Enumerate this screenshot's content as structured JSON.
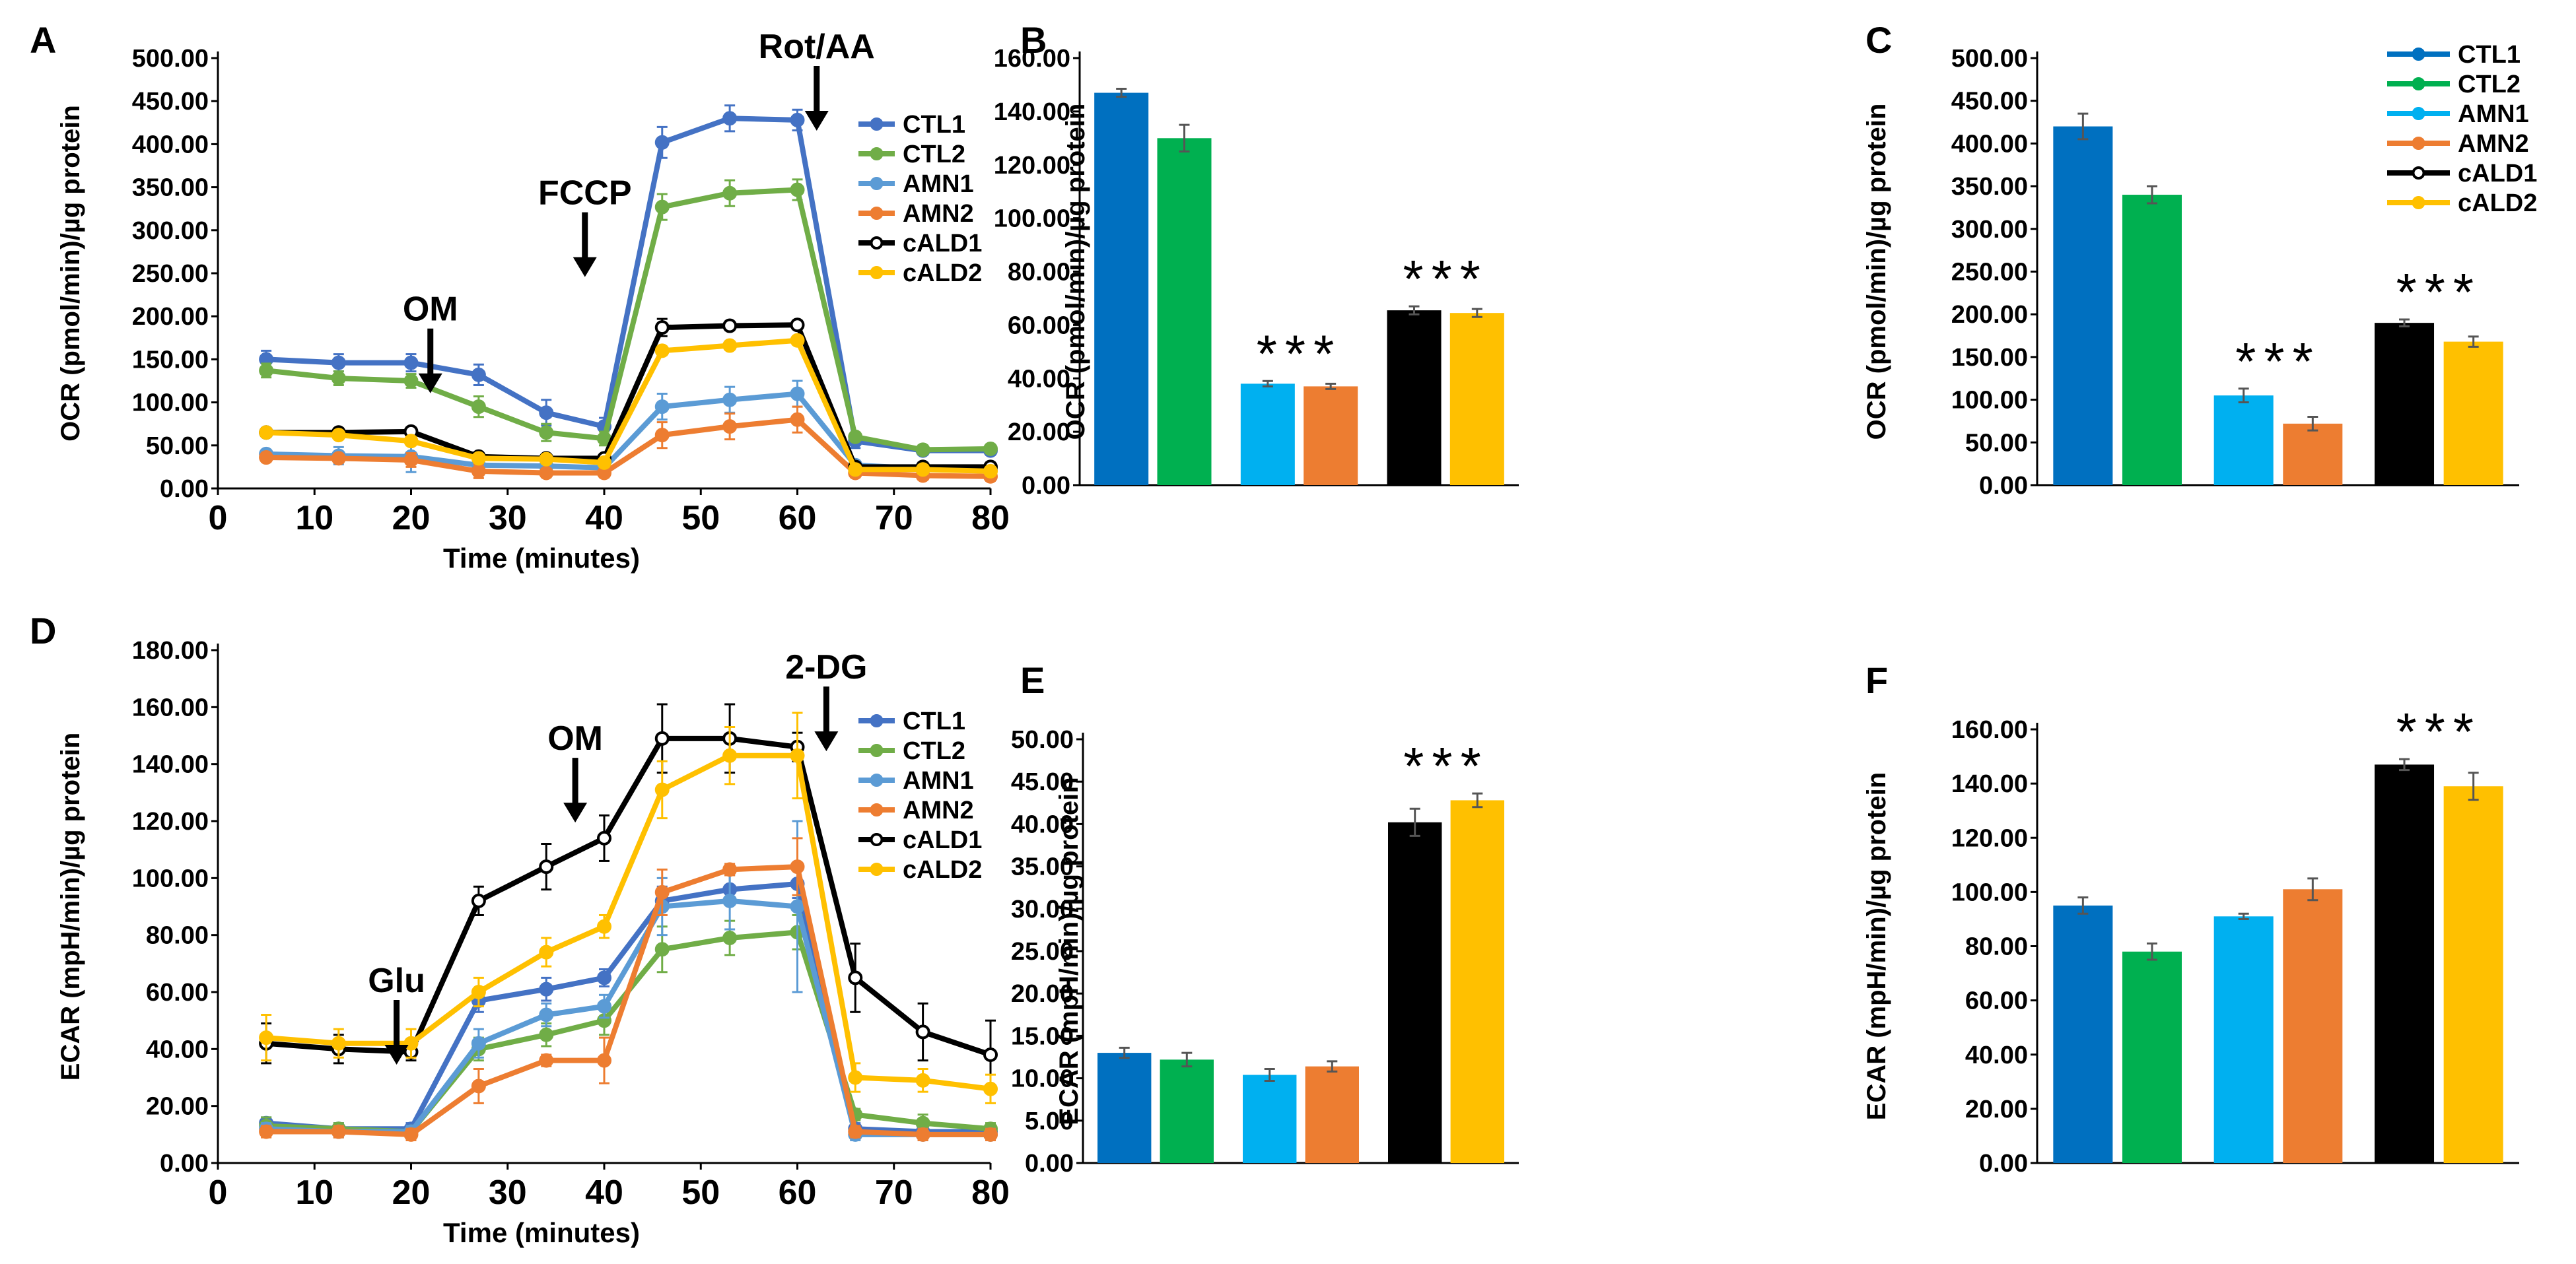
{
  "colors": {
    "CTL1": "#4472C4",
    "CTL2": "#70AD47",
    "AMN1": "#5B9BD5",
    "AMN2": "#ED7D31",
    "cALD1": "#000000",
    "cALD2": "#FFC000",
    "bar_CTL1": "#0070C0",
    "bar_CTL2": "#00B050",
    "bar_AMN1": "#00B0F0",
    "bar_AMN2": "#ED7D31",
    "bar_cALD1": "#000000",
    "bar_cALD2": "#FFC000"
  },
  "chart_data": [
    {
      "id": "A",
      "panel_label": "A",
      "type": "line",
      "ylabel": "OCR (pmol/min)/µg protein",
      "xlabel": "Time (minutes)",
      "ylim": [
        0,
        500
      ],
      "ystep": 50,
      "decimals": 2,
      "xlim": [
        0,
        80
      ],
      "xticks": [
        0,
        10,
        20,
        30,
        40,
        50,
        60,
        70,
        80
      ],
      "x": [
        5,
        12.5,
        20,
        27,
        34,
        40,
        46,
        53,
        60,
        66,
        73,
        80
      ],
      "legend": {
        "entries": [
          "CTL1",
          "CTL2",
          "AMN1",
          "AMN2",
          "cALD1",
          "cALD2"
        ],
        "placement": "right"
      },
      "series": [
        {
          "name": "CTL1",
          "values": [
            150,
            146,
            146,
            132,
            88,
            72,
            402,
            430,
            428,
            55,
            44,
            44
          ],
          "errors": [
            10,
            10,
            10,
            12,
            15,
            10,
            18,
            15,
            12,
            8,
            5,
            5
          ]
        },
        {
          "name": "CTL2",
          "values": [
            137,
            128,
            125,
            95,
            65,
            58,
            327,
            343,
            347,
            60,
            45,
            46
          ],
          "errors": [
            8,
            8,
            8,
            12,
            10,
            8,
            15,
            15,
            12,
            5,
            5,
            5
          ]
        },
        {
          "name": "AMN1",
          "values": [
            40,
            38,
            37,
            27,
            26,
            24,
            95,
            103,
            110,
            27,
            23,
            22
          ],
          "errors": [
            5,
            10,
            18,
            10,
            5,
            5,
            15,
            15,
            15,
            5,
            5,
            5
          ]
        },
        {
          "name": "AMN2",
          "values": [
            36,
            35,
            33,
            20,
            18,
            18,
            62,
            72,
            80,
            18,
            15,
            14
          ],
          "errors": [
            5,
            5,
            8,
            8,
            5,
            5,
            15,
            15,
            15,
            5,
            5,
            5
          ]
        },
        {
          "name": "cALD1",
          "values": [
            65,
            65,
            66,
            37,
            35,
            35,
            187,
            189,
            190,
            25,
            25,
            25
          ],
          "errors": [
            5,
            5,
            5,
            5,
            5,
            5,
            10,
            5,
            5,
            5,
            5,
            5
          ]
        },
        {
          "name": "cALD2",
          "values": [
            65,
            62,
            55,
            35,
            34,
            30,
            160,
            166,
            172,
            22,
            22,
            20
          ],
          "errors": [
            5,
            5,
            5,
            5,
            5,
            5,
            5,
            5,
            5,
            5,
            5,
            5
          ]
        }
      ],
      "annotations": [
        {
          "label": "OM",
          "x": 22,
          "y": 195
        },
        {
          "label": "FCCP",
          "x": 38,
          "y": 330
        },
        {
          "label": "Rot/AA",
          "x": 62,
          "y": 500
        }
      ]
    },
    {
      "id": "B",
      "panel_label": "B",
      "type": "bar",
      "ylabel": "OCR (pmol/min)/µg protein",
      "ylim": [
        0,
        160
      ],
      "ystep": 20,
      "decimals": 2,
      "groups": [
        [
          "CTL1",
          "CTL2"
        ],
        [
          "AMN1",
          "AMN2"
        ],
        [
          "cALD1",
          "cALD2"
        ]
      ],
      "values": [
        147,
        130,
        38,
        37,
        65.5,
        64.5
      ],
      "errors": [
        1.5,
        5,
        1,
        1,
        1.5,
        1.5
      ],
      "stars": [
        "",
        "***",
        "***"
      ],
      "legend": null
    },
    {
      "id": "C",
      "panel_label": "C",
      "type": "bar",
      "ylabel": "OCR (pmol/min)/µg protein",
      "ylim": [
        0,
        500
      ],
      "ystep": 50,
      "decimals": 2,
      "groups": [
        [
          "CTL1",
          "CTL2"
        ],
        [
          "AMN1",
          "AMN2"
        ],
        [
          "cALD1",
          "cALD2"
        ]
      ],
      "values": [
        420,
        340,
        105,
        72,
        190,
        168
      ],
      "errors": [
        15,
        10,
        8,
        8,
        4,
        6
      ],
      "stars": [
        "",
        "***",
        "***"
      ],
      "legend": {
        "entries": [
          "CTL1",
          "CTL2",
          "AMN1",
          "AMN2",
          "cALD1",
          "cALD2"
        ],
        "placement": "top-right"
      }
    },
    {
      "id": "D",
      "panel_label": "D",
      "type": "line",
      "ylabel": "ECAR (mpH/min)/µg protein",
      "xlabel": "Time (minutes)",
      "ylim": [
        0,
        180
      ],
      "ystep": 20,
      "decimals": 2,
      "xlim": [
        0,
        80
      ],
      "xticks": [
        0,
        10,
        20,
        30,
        40,
        50,
        60,
        70,
        80
      ],
      "x": [
        5,
        12.5,
        20,
        27,
        34,
        40,
        46,
        53,
        60,
        66,
        73,
        80
      ],
      "legend": {
        "entries": [
          "CTL1",
          "CTL2",
          "AMN1",
          "AMN2",
          "cALD1",
          "cALD2"
        ],
        "placement": "right"
      },
      "series": [
        {
          "name": "CTL1",
          "values": [
            14,
            12,
            12,
            57,
            61,
            65,
            92,
            96,
            98,
            12,
            11,
            11
          ],
          "errors": [
            2,
            2,
            2,
            4,
            4,
            3,
            5,
            5,
            5,
            2,
            2,
            2
          ]
        },
        {
          "name": "CTL2",
          "values": [
            13,
            12,
            11,
            40,
            45,
            50,
            75,
            79,
            81,
            17,
            14,
            12
          ],
          "errors": [
            3,
            2,
            2,
            4,
            4,
            5,
            8,
            6,
            6,
            2,
            3,
            2
          ]
        },
        {
          "name": "AMN1",
          "values": [
            12,
            11,
            11,
            42,
            52,
            55,
            90,
            92,
            90,
            10,
            10,
            10
          ],
          "errors": [
            2,
            2,
            2,
            5,
            4,
            4,
            10,
            10,
            30,
            2,
            2,
            2
          ]
        },
        {
          "name": "AMN2",
          "values": [
            11,
            11,
            10,
            27,
            36,
            36,
            95,
            103,
            104,
            11,
            10,
            10
          ],
          "errors": [
            2,
            2,
            2,
            6,
            2,
            8,
            8,
            2,
            10,
            2,
            2,
            2
          ]
        },
        {
          "name": "cALD1",
          "values": [
            42,
            40,
            39,
            92,
            104,
            114,
            149,
            149,
            146,
            65,
            46,
            38
          ],
          "errors": [
            7,
            5,
            3,
            5,
            8,
            8,
            12,
            12,
            5,
            12,
            10,
            12
          ]
        },
        {
          "name": "cALD2",
          "values": [
            44,
            42,
            42,
            60,
            74,
            83,
            131,
            143,
            143,
            30,
            29,
            26
          ],
          "errors": [
            8,
            5,
            5,
            5,
            5,
            4,
            10,
            10,
            15,
            5,
            4,
            5
          ]
        }
      ],
      "annotations": [
        {
          "label": "Glu",
          "x": 18.5,
          "y": 60
        },
        {
          "label": "OM",
          "x": 37,
          "y": 145
        },
        {
          "label": "2-DG",
          "x": 63,
          "y": 170
        }
      ]
    },
    {
      "id": "E",
      "panel_label": "E",
      "type": "bar",
      "ylabel": "ECAR (mpH/min)/µg protein",
      "ylim": [
        0,
        50
      ],
      "ystep": 5,
      "decimals": 2,
      "groups": [
        [
          "CTL1",
          "CTL2"
        ],
        [
          "AMN1",
          "AMN2"
        ],
        [
          "cALD1",
          "cALD2"
        ]
      ],
      "values": [
        13,
        12.2,
        10.4,
        11.4,
        40.2,
        42.8
      ],
      "errors": [
        0.6,
        0.8,
        0.7,
        0.6,
        1.6,
        0.8
      ],
      "stars": [
        "",
        "",
        "***"
      ],
      "legend": null
    },
    {
      "id": "F",
      "panel_label": "F",
      "type": "bar",
      "ylabel": "ECAR (mpH/min)/µg protein",
      "ylim": [
        0,
        160
      ],
      "ystep": 20,
      "decimals": 2,
      "groups": [
        [
          "CTL1",
          "CTL2"
        ],
        [
          "AMN1",
          "AMN2"
        ],
        [
          "cALD1",
          "cALD2"
        ]
      ],
      "values": [
        95,
        78,
        91,
        101,
        147,
        139
      ],
      "errors": [
        3,
        3,
        1,
        4,
        2,
        5
      ],
      "stars": [
        "",
        "",
        "***"
      ],
      "legend": null
    }
  ]
}
